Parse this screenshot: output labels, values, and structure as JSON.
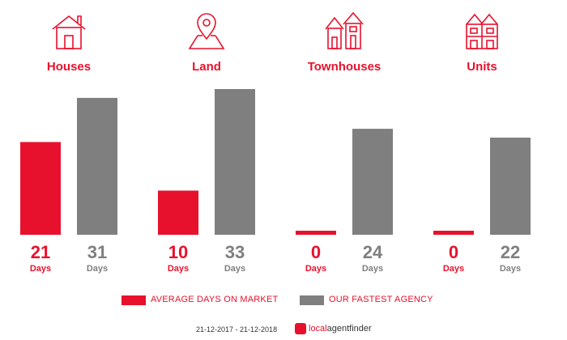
{
  "chart_data": {
    "type": "bar",
    "categories": [
      "Houses",
      "Land",
      "Townhouses",
      "Units"
    ],
    "series": [
      {
        "name": "AVERAGE DAYS ON MARKET",
        "color": "#e8112d",
        "values": [
          21,
          10,
          0,
          0
        ]
      },
      {
        "name": "OUR FASTEST AGENCY",
        "color": "#7f7f7f",
        "values": [
          31,
          33,
          24,
          22
        ]
      }
    ],
    "unit_label": "Days",
    "ylim": [
      0,
      33
    ],
    "grid": false,
    "legend": "bottom"
  },
  "icons": [
    "house-icon",
    "land-pin-icon",
    "townhouses-icon",
    "units-icon"
  ],
  "footer": {
    "date_range": "21-12-2017 - 21-12-2018",
    "logo_text": "localagentfinder"
  }
}
